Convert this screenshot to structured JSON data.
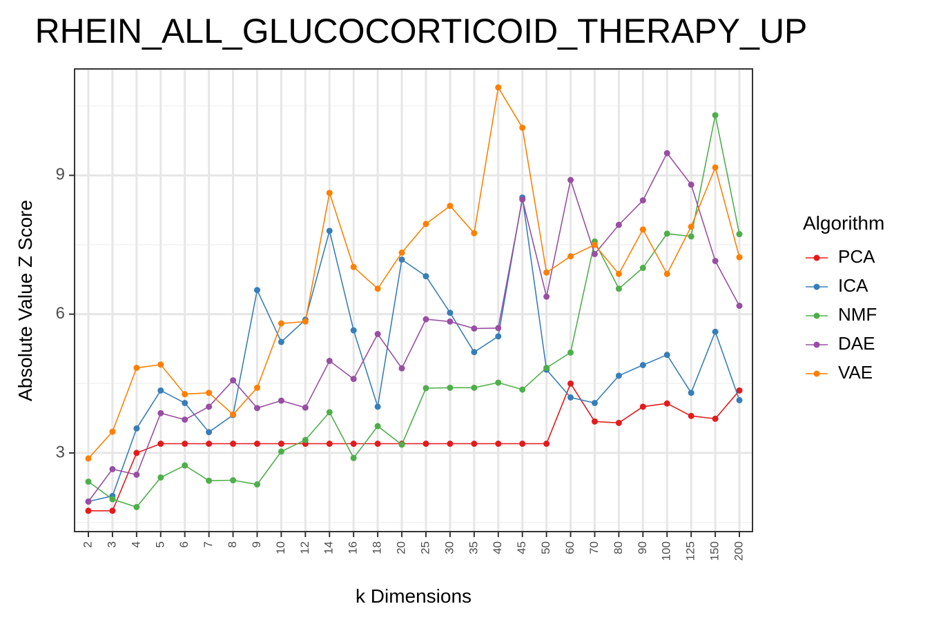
{
  "chart_data": {
    "type": "line",
    "title": "RHEIN_ALL_GLUCOCORTICOID_THERAPY_UP",
    "xlabel": "k Dimensions",
    "ylabel": "Absolute Value Z Score",
    "categories": [
      "2",
      "3",
      "4",
      "5",
      "6",
      "7",
      "8",
      "9",
      "10",
      "12",
      "14",
      "16",
      "18",
      "20",
      "25",
      "30",
      "35",
      "40",
      "45",
      "50",
      "60",
      "70",
      "80",
      "90",
      "100",
      "125",
      "150",
      "200"
    ],
    "yticks": [
      3,
      6,
      9
    ],
    "ylim": [
      1.3,
      11.3
    ],
    "grid": true,
    "legend": {
      "title": "Algorithm",
      "position": "right"
    },
    "series": [
      {
        "name": "PCA",
        "color": "#E41A1C",
        "values": [
          1.75,
          1.75,
          3.0,
          3.2,
          3.2,
          3.2,
          3.2,
          3.2,
          3.2,
          3.2,
          3.2,
          3.2,
          3.2,
          3.2,
          3.2,
          3.2,
          3.2,
          3.2,
          3.2,
          3.2,
          4.5,
          3.68,
          3.65,
          4.0,
          4.07,
          3.8,
          3.74,
          4.35
        ]
      },
      {
        "name": "ICA",
        "color": "#377EB8",
        "values": [
          1.95,
          2.07,
          3.53,
          4.35,
          4.08,
          3.45,
          3.82,
          6.52,
          5.4,
          5.88,
          7.8,
          5.65,
          4.0,
          7.18,
          6.82,
          6.03,
          5.18,
          5.52,
          8.52,
          4.8,
          4.2,
          4.08,
          4.67,
          4.9,
          5.12,
          4.3,
          5.62,
          4.14
        ]
      },
      {
        "name": "NMF",
        "color": "#4DAF4A",
        "values": [
          2.38,
          2.0,
          1.83,
          2.47,
          2.73,
          2.4,
          2.41,
          2.32,
          3.03,
          3.28,
          3.88,
          2.89,
          3.58,
          3.18,
          4.4,
          4.41,
          4.41,
          4.52,
          4.37,
          4.84,
          5.17,
          7.57,
          6.55,
          7.0,
          7.74,
          7.68,
          10.3,
          7.73
        ]
      },
      {
        "name": "DAE",
        "color": "#984EA3",
        "values": [
          1.95,
          2.65,
          2.53,
          3.86,
          3.72,
          4.0,
          4.57,
          3.97,
          4.13,
          3.98,
          4.99,
          4.6,
          5.57,
          4.83,
          5.89,
          5.84,
          5.69,
          5.7,
          8.48,
          6.38,
          8.9,
          7.3,
          7.93,
          8.46,
          9.48,
          8.8,
          7.15,
          6.18
        ]
      },
      {
        "name": "VAE",
        "color": "#FF7F00",
        "values": [
          2.88,
          3.46,
          4.84,
          4.91,
          4.27,
          4.3,
          3.83,
          4.41,
          5.8,
          5.84,
          8.62,
          7.02,
          6.55,
          7.33,
          7.95,
          8.34,
          7.75,
          10.9,
          10.03,
          6.9,
          7.25,
          7.5,
          6.87,
          7.83,
          6.87,
          7.89,
          9.17,
          7.23
        ]
      }
    ]
  }
}
